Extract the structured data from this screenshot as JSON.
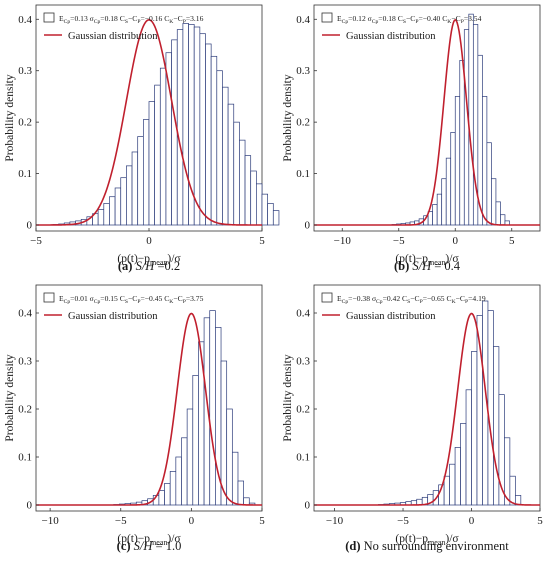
{
  "chart_data": [
    {
      "type": "bar",
      "subplot": "a",
      "caption_label": "(a)",
      "caption_italic": "S/H",
      "caption_rest": " =0.2",
      "legend_stats": {
        "mean": "0.13",
        "std": "0.18",
        "skew": "−0.16",
        "kurt": "3.16"
      },
      "legend_curve": "Gaussian distribution",
      "ylabel": "Probability density",
      "xlabel_main": "(p(t)−p",
      "xlabel_sub": "mean",
      "xlabel_tail": ")/σ",
      "xlim": [
        -5,
        5
      ],
      "ylim": [
        0,
        0.42
      ],
      "xticks": [
        -5,
        0,
        5
      ],
      "yticks": [
        0,
        0.1,
        0.2,
        0.3,
        0.4
      ],
      "ytick_labels": [
        "0",
        "0.1",
        "0.2",
        "0.3",
        "0.4"
      ],
      "hist": {
        "bin_start": -4.25,
        "bin_width": 0.25,
        "values": [
          0.001,
          0.002,
          0.004,
          0.006,
          0.008,
          0.011,
          0.016,
          0.022,
          0.03,
          0.042,
          0.055,
          0.072,
          0.092,
          0.115,
          0.142,
          0.172,
          0.205,
          0.24,
          0.272,
          0.305,
          0.335,
          0.36,
          0.38,
          0.392,
          0.39,
          0.385,
          0.372,
          0.352,
          0.328,
          0.3,
          0.268,
          0.235,
          0.2,
          0.165,
          0.135,
          0.105,
          0.08,
          0.06,
          0.042,
          0.028
        ]
      },
      "gaussian": {
        "mu": 0,
        "sigma": 1
      }
    },
    {
      "type": "bar",
      "subplot": "b",
      "caption_label": "(b)",
      "caption_italic": "S/H",
      "caption_rest": " = 0.4",
      "legend_stats": {
        "mean": "0.12",
        "std": "0.18",
        "skew": "−0.40",
        "kurt": "3.54"
      },
      "legend_curve": "Gaussian distribution",
      "ylabel": "Probability density",
      "xlabel_main": "(p(t)−p",
      "xlabel_sub": "mean",
      "xlabel_tail": ")/σ",
      "xlim": [
        -12.5,
        7.5
      ],
      "ylim": [
        0,
        0.42
      ],
      "xticks": [
        -10,
        -5,
        0,
        5
      ],
      "yticks": [
        0,
        0.1,
        0.2,
        0.3,
        0.4
      ],
      "ytick_labels": [
        "0",
        "0.1",
        "0.2",
        "0.3",
        "0.4"
      ],
      "hist": {
        "bin_start": -5.6,
        "bin_width": 0.4,
        "values": [
          0.001,
          0.002,
          0.003,
          0.004,
          0.006,
          0.008,
          0.012,
          0.018,
          0.026,
          0.04,
          0.06,
          0.09,
          0.13,
          0.18,
          0.25,
          0.32,
          0.38,
          0.41,
          0.39,
          0.33,
          0.25,
          0.16,
          0.09,
          0.045,
          0.02,
          0.008
        ]
      },
      "gaussian": {
        "mu": 0,
        "sigma": 1
      }
    },
    {
      "type": "bar",
      "subplot": "c",
      "caption_label": "(c)",
      "caption_italic": "S/H",
      "caption_rest": " = 1.0",
      "legend_stats": {
        "mean": "0.01",
        "std": "0.15",
        "skew": "−0.45",
        "kurt": "3.75"
      },
      "legend_curve": "Gaussian distribution",
      "ylabel": "Probability density",
      "xlabel_main": "(p(t)−p",
      "xlabel_sub": "mean",
      "xlabel_tail": ")/σ",
      "xlim": [
        -11,
        5
      ],
      "ylim": [
        0,
        0.45
      ],
      "xticks": [
        -10,
        -5,
        0,
        5
      ],
      "yticks": [
        0,
        0.1,
        0.2,
        0.3,
        0.4
      ],
      "ytick_labels": [
        "0",
        "0.1",
        "0.2",
        "0.3",
        "0.4"
      ],
      "hist": {
        "bin_start": -5.5,
        "bin_width": 0.4,
        "values": [
          0.001,
          0.002,
          0.003,
          0.004,
          0.006,
          0.009,
          0.013,
          0.02,
          0.03,
          0.045,
          0.07,
          0.1,
          0.14,
          0.2,
          0.27,
          0.34,
          0.39,
          0.405,
          0.37,
          0.3,
          0.2,
          0.11,
          0.05,
          0.015,
          0.004
        ]
      },
      "gaussian": {
        "mu": 0,
        "sigma": 1
      }
    },
    {
      "type": "bar",
      "subplot": "d",
      "caption_label": "(d)",
      "caption_italic": "",
      "caption_rest": "No surrounding environment",
      "legend_stats": {
        "mean": "−0.38",
        "std": "0.42",
        "skew": "−0.65",
        "kurt": "4.19"
      },
      "legend_curve": "Gaussian distribution",
      "ylabel": "Probability density",
      "xlabel_main": "(p(t)−p",
      "xlabel_sub": "mean",
      "xlabel_tail": ")/σ",
      "xlim": [
        -11.5,
        5
      ],
      "ylim": [
        0,
        0.45
      ],
      "xticks": [
        -10,
        -5,
        0,
        5
      ],
      "yticks": [
        0,
        0.1,
        0.2,
        0.3,
        0.4
      ],
      "ytick_labels": [
        "0",
        "0.1",
        "0.2",
        "0.3",
        "0.4"
      ],
      "hist": {
        "bin_start": -6.8,
        "bin_width": 0.4,
        "values": [
          0.001,
          0.002,
          0.003,
          0.004,
          0.005,
          0.007,
          0.009,
          0.012,
          0.016,
          0.022,
          0.03,
          0.042,
          0.06,
          0.085,
          0.12,
          0.17,
          0.24,
          0.32,
          0.395,
          0.425,
          0.405,
          0.33,
          0.23,
          0.14,
          0.06,
          0.02
        ]
      },
      "gaussian": {
        "mu": 0,
        "sigma": 1
      }
    }
  ]
}
